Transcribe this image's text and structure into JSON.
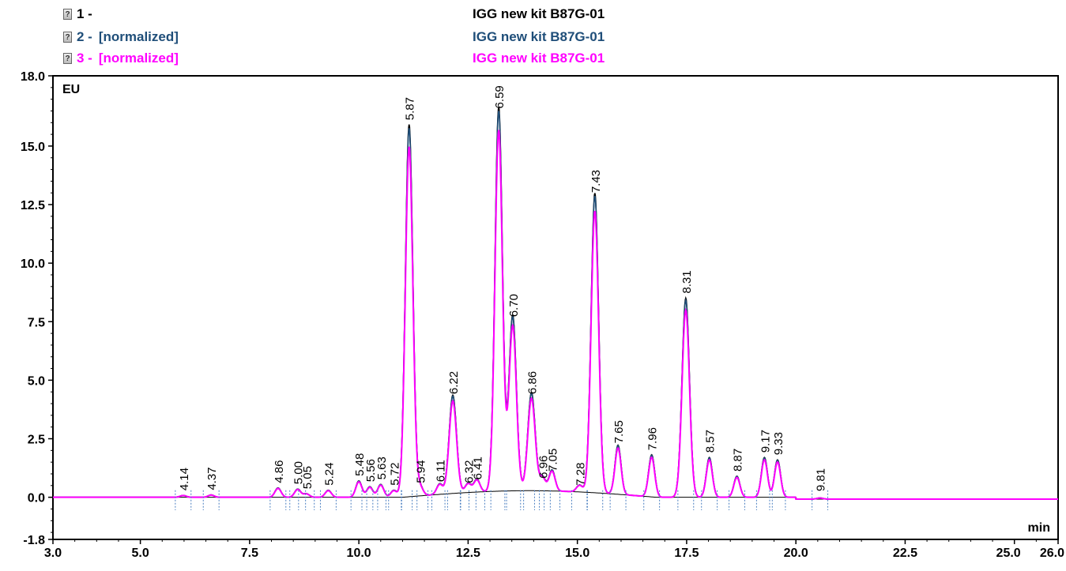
{
  "legend": [
    {
      "id": "1 -",
      "note": "",
      "title": "IGG new kit B87G-01",
      "color": "#000000"
    },
    {
      "id": "2 -",
      "note": "[normalized]",
      "title": "IGG new kit B87G-01",
      "color": "#1f4e79"
    },
    {
      "id": "3 -",
      "note": "[normalized]",
      "title": "IGG new kit B87G-01",
      "color": "#ff00ff"
    }
  ],
  "chart_data": {
    "type": "line",
    "ylabel": "EU",
    "xlabel": "min",
    "xlim": [
      3.0,
      26.0
    ],
    "ylim": [
      -1.8,
      18.0
    ],
    "x_ticks": [
      "3.0",
      "5.0",
      "7.5",
      "10.0",
      "12.5",
      "15.0",
      "17.5",
      "20.0",
      "22.5",
      "25.0",
      "26.0"
    ],
    "y_ticks": [
      "18.0",
      "15.0",
      "12.5",
      "10.0",
      "7.5",
      "5.0",
      "2.5",
      "0.0",
      "-1.8"
    ],
    "peaks": [
      {
        "label": "4.14",
        "x": 5.98,
        "y": 0.08
      },
      {
        "label": "4.37",
        "x": 6.62,
        "y": 0.1
      },
      {
        "label": "4.86",
        "x": 8.15,
        "y": 0.4
      },
      {
        "label": "5.00",
        "x": 8.6,
        "y": 0.35
      },
      {
        "label": "5.05",
        "x": 8.8,
        "y": 0.15
      },
      {
        "label": "5.24",
        "x": 9.3,
        "y": 0.3
      },
      {
        "label": "5.48",
        "x": 10.0,
        "y": 0.7
      },
      {
        "label": "5.56",
        "x": 10.25,
        "y": 0.45
      },
      {
        "label": "5.63",
        "x": 10.5,
        "y": 0.55
      },
      {
        "label": "5.72",
        "x": 10.8,
        "y": 0.3
      },
      {
        "label": "5.87",
        "x": 11.15,
        "y": 15.9
      },
      {
        "label": "5.94",
        "x": 11.4,
        "y": 0.4
      },
      {
        "label": "6.11",
        "x": 11.85,
        "y": 0.45
      },
      {
        "label": "6.22",
        "x": 12.15,
        "y": 4.2
      },
      {
        "label": "6.32",
        "x": 12.5,
        "y": 0.4
      },
      {
        "label": "6.41",
        "x": 12.7,
        "y": 0.55
      },
      {
        "label": "6.59",
        "x": 13.2,
        "y": 16.4
      },
      {
        "label": "6.70",
        "x": 13.52,
        "y": 7.5
      },
      {
        "label": "6.86",
        "x": 13.95,
        "y": 4.2
      },
      {
        "label": "6.96",
        "x": 14.2,
        "y": 0.6
      },
      {
        "label": "7.05",
        "x": 14.42,
        "y": 0.9
      },
      {
        "label": "7.28",
        "x": 15.05,
        "y": 0.3
      },
      {
        "label": "7.43",
        "x": 15.4,
        "y": 12.8
      },
      {
        "label": "7.65",
        "x": 15.93,
        "y": 2.1
      },
      {
        "label": "7.96",
        "x": 16.7,
        "y": 1.8
      },
      {
        "label": "8.31",
        "x": 17.48,
        "y": 8.5
      },
      {
        "label": "8.57",
        "x": 18.02,
        "y": 1.7
      },
      {
        "label": "8.87",
        "x": 18.65,
        "y": 0.9
      },
      {
        "label": "9.17",
        "x": 19.28,
        "y": 1.7
      },
      {
        "label": "9.33",
        "x": 19.58,
        "y": 1.6
      },
      {
        "label": "9.81",
        "x": 20.55,
        "y": 0.05
      }
    ],
    "series": [
      {
        "name": "1 -",
        "color": "#000000",
        "scale": 1.0
      },
      {
        "name": "2 - [normalized]",
        "color": "#1f4e79",
        "scale": 0.99
      },
      {
        "name": "3 - [normalized]",
        "color": "#ff00ff",
        "scale": 0.94
      }
    ]
  }
}
